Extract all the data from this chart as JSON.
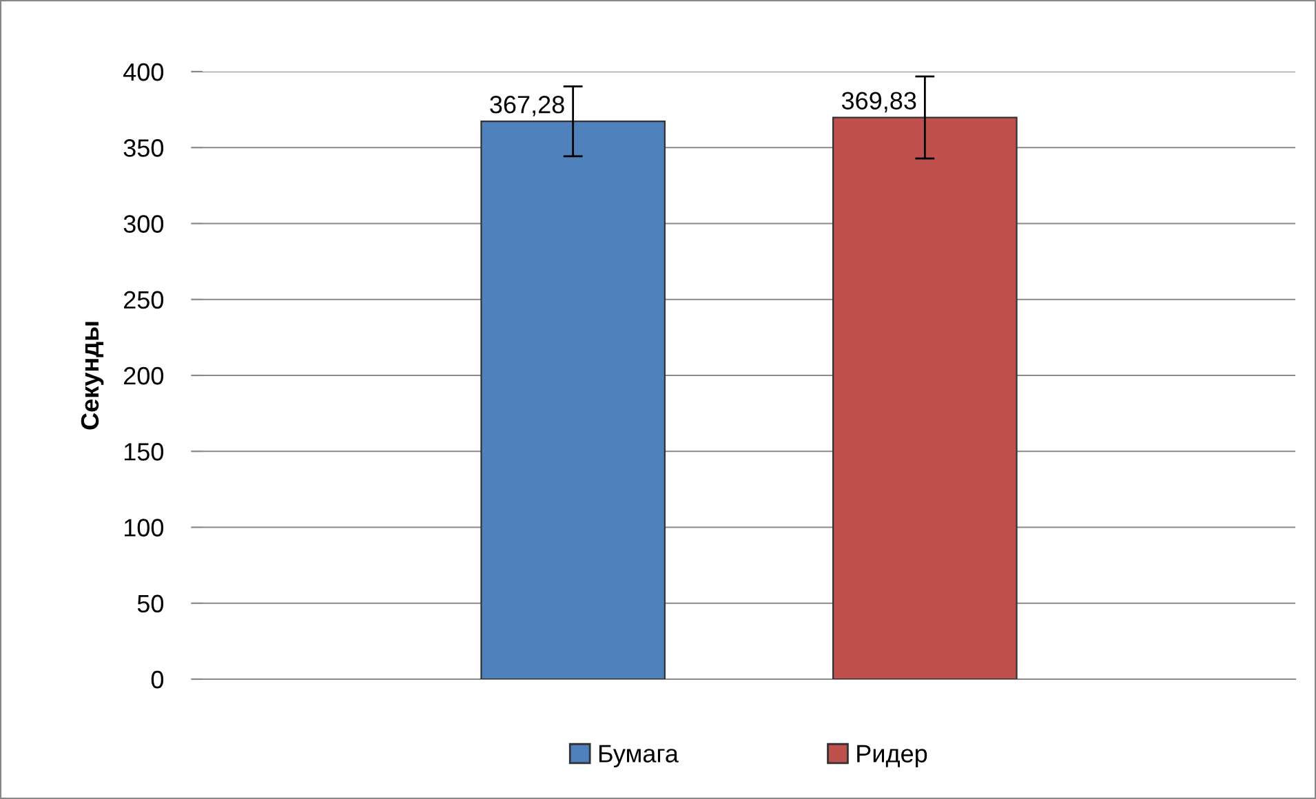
{
  "chart_data": {
    "type": "bar",
    "ylabel": "Секунды",
    "categories": [
      null
    ],
    "series": [
      {
        "name": "Бумага",
        "color": "#4f81bd",
        "values": [
          367.28
        ],
        "errors": [
          23
        ],
        "value_labels": [
          "367,28"
        ]
      },
      {
        "name": "Ридер",
        "color": "#c0504d",
        "values": [
          369.83
        ],
        "errors": [
          27
        ],
        "value_labels": [
          "369,83"
        ]
      }
    ],
    "ylim": [
      0,
      400
    ],
    "yticks": [
      0,
      50,
      100,
      150,
      200,
      250,
      300,
      350,
      400
    ],
    "grid": "y",
    "legend": "bottom"
  }
}
